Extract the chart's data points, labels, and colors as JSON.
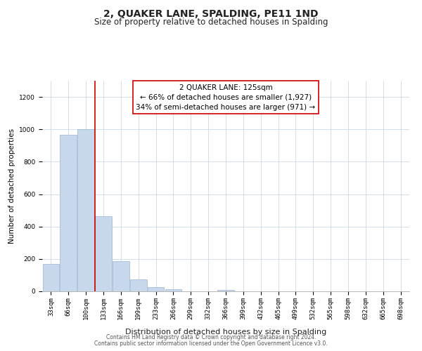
{
  "title": "2, QUAKER LANE, SPALDING, PE11 1ND",
  "subtitle": "Size of property relative to detached houses in Spalding",
  "xlabel": "Distribution of detached houses by size in Spalding",
  "ylabel": "Number of detached properties",
  "bar_labels": [
    "33sqm",
    "66sqm",
    "100sqm",
    "133sqm",
    "166sqm",
    "199sqm",
    "233sqm",
    "266sqm",
    "299sqm",
    "332sqm",
    "366sqm",
    "399sqm",
    "432sqm",
    "465sqm",
    "499sqm",
    "532sqm",
    "565sqm",
    "598sqm",
    "632sqm",
    "665sqm",
    "698sqm"
  ],
  "bar_values": [
    170,
    965,
    1000,
    465,
    185,
    75,
    25,
    15,
    0,
    0,
    10,
    0,
    0,
    0,
    0,
    0,
    0,
    0,
    0,
    0,
    0
  ],
  "bar_color": "#c8d8ec",
  "bar_edge_color": "#9ab4d0",
  "vline_x_bar": 3,
  "vline_color": "#cc0000",
  "annotation_title": "2 QUAKER LANE: 125sqm",
  "annotation_line1": "← 66% of detached houses are smaller (1,927)",
  "annotation_line2": "34% of semi-detached houses are larger (971) →",
  "annotation_box_color": "#ffffff",
  "annotation_box_edge": "#cc0000",
  "ylim_max": 1300,
  "yticks": [
    0,
    200,
    400,
    600,
    800,
    1000,
    1200
  ],
  "footer1": "Contains HM Land Registry data © Crown copyright and database right 2024.",
  "footer2": "Contains public sector information licensed under the Open Government Licence v3.0.",
  "title_fontsize": 10,
  "subtitle_fontsize": 8.5,
  "xlabel_fontsize": 8,
  "ylabel_fontsize": 7.5,
  "tick_fontsize": 6.5,
  "annotation_fontsize": 7.5,
  "footer_fontsize": 5.5,
  "grid_color": "#ccd8e8"
}
